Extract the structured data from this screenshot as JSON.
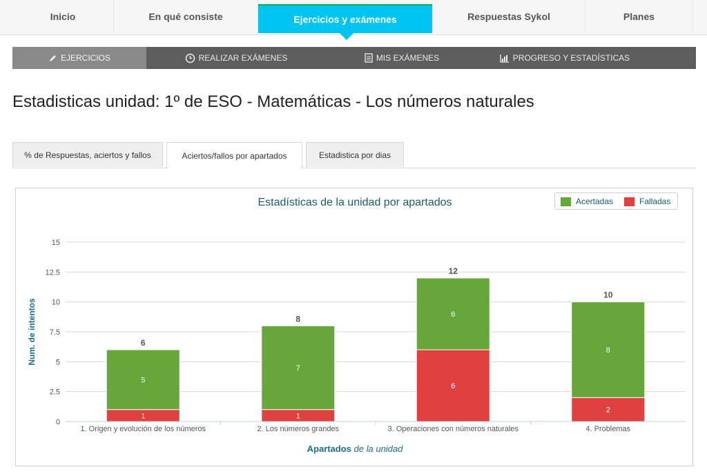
{
  "topnav": {
    "tabs": [
      "Inicio",
      "En qué consiste",
      "Ejercicios y exámenes",
      "Respuestas Sykol",
      "Planes"
    ],
    "active_index": 2,
    "active_color": "#00c4f0"
  },
  "subnav": {
    "items": [
      {
        "label": "Ejercicios",
        "icon": "pencil-icon"
      },
      {
        "label": "Realizar exámenes",
        "icon": "clock-icon"
      },
      {
        "label": "Mis exámenes",
        "icon": "document-icon"
      },
      {
        "label": "Progreso y estadísticas",
        "icon": "bar-chart-icon"
      }
    ],
    "active_index": 0
  },
  "page": {
    "title": "Estadisticas unidad: 1º de ESO - Matemáticas - Los números naturales"
  },
  "tabs": {
    "items": [
      "% de Respuestas, aciertos y fallos",
      "Aciertos/fallos por apartados",
      "Estadistica por dias"
    ],
    "active_index": 1
  },
  "chart_data": {
    "type": "bar",
    "stacked": true,
    "title": "Estadísticas de la unidad por apartados",
    "categories": [
      "1. Origen y evolución de los números",
      "2. Los números grandes",
      "3. Operaciones con números naturales",
      "4. Problemas"
    ],
    "series": [
      {
        "name": "Acertadas",
        "color": "#66a63a",
        "values": [
          5,
          7,
          6,
          8
        ]
      },
      {
        "name": "Falladas",
        "color": "#e04040",
        "values": [
          1,
          1,
          6,
          2
        ]
      }
    ],
    "totals": [
      6,
      8,
      12,
      10
    ],
    "ylabel": "Num. de intentos",
    "xlabel_bold": "Apartados",
    "xlabel_italic": "de la unidad",
    "ylim": [
      0,
      15
    ],
    "yticks": [
      "0",
      "2.5",
      "5",
      "7.5",
      "10",
      "12.5",
      "15"
    ],
    "legend_position": "top-right",
    "grid": true
  }
}
